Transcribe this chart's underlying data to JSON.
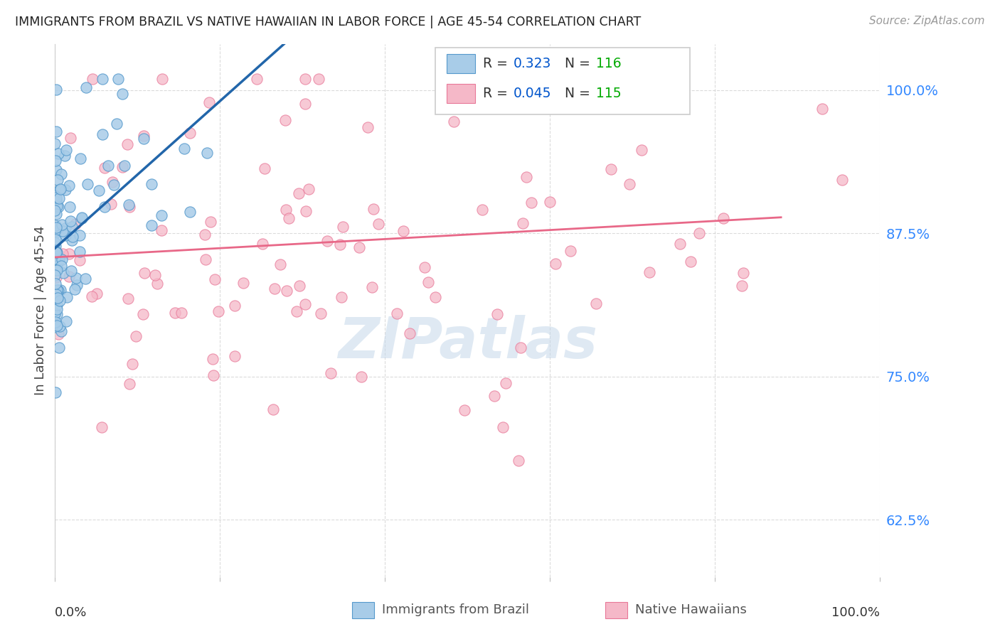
{
  "title": "IMMIGRANTS FROM BRAZIL VS NATIVE HAWAIIAN IN LABOR FORCE | AGE 45-54 CORRELATION CHART",
  "source": "Source: ZipAtlas.com",
  "ylabel": "In Labor Force | Age 45-54",
  "ytick_labels": [
    "62.5%",
    "75.0%",
    "87.5%",
    "100.0%"
  ],
  "ytick_values": [
    0.625,
    0.75,
    0.875,
    1.0
  ],
  "brazil_R": 0.323,
  "brazil_N": 116,
  "hawaii_R": 0.045,
  "hawaii_N": 115,
  "brazil_color": "#a8cce8",
  "hawaii_color": "#f5b8c8",
  "brazil_edge_color": "#5599cc",
  "hawaii_edge_color": "#e87898",
  "brazil_line_color": "#2266aa",
  "hawaii_line_color": "#e86888",
  "trend_dash_color": "#99bbdd",
  "background_color": "#ffffff",
  "grid_color": "#cccccc",
  "title_color": "#222222",
  "source_color": "#999999",
  "legend_R_color": "#0055cc",
  "legend_N_color": "#00aa00",
  "watermark_color": "#c5d8ea",
  "xlim": [
    0.0,
    1.0
  ],
  "ylim": [
    0.575,
    1.04
  ]
}
